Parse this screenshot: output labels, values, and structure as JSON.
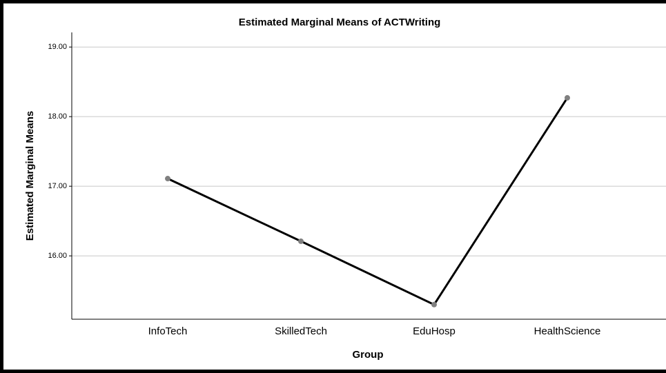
{
  "chart_data": {
    "type": "line",
    "title": "Estimated Marginal Means of ACTWriting",
    "x_label": "Group",
    "y_label": "Estimated Marginal Means",
    "categories": [
      "InfoTech",
      "SkilledTech",
      "EduHosp",
      "HealthScience"
    ],
    "series": [
      {
        "name": "ACTWriting",
        "color": "#000000",
        "marker_color": "#808080",
        "values": [
          17.11,
          16.21,
          15.3,
          18.27
        ]
      }
    ],
    "ylim": [
      15.09,
      19.21
    ],
    "yticks": [
      {
        "value": 16,
        "label": "16.00"
      },
      {
        "value": 17,
        "label": "17.00"
      },
      {
        "value": 18,
        "label": "18.00"
      },
      {
        "value": 19,
        "label": "19.00"
      }
    ],
    "grid": true
  }
}
